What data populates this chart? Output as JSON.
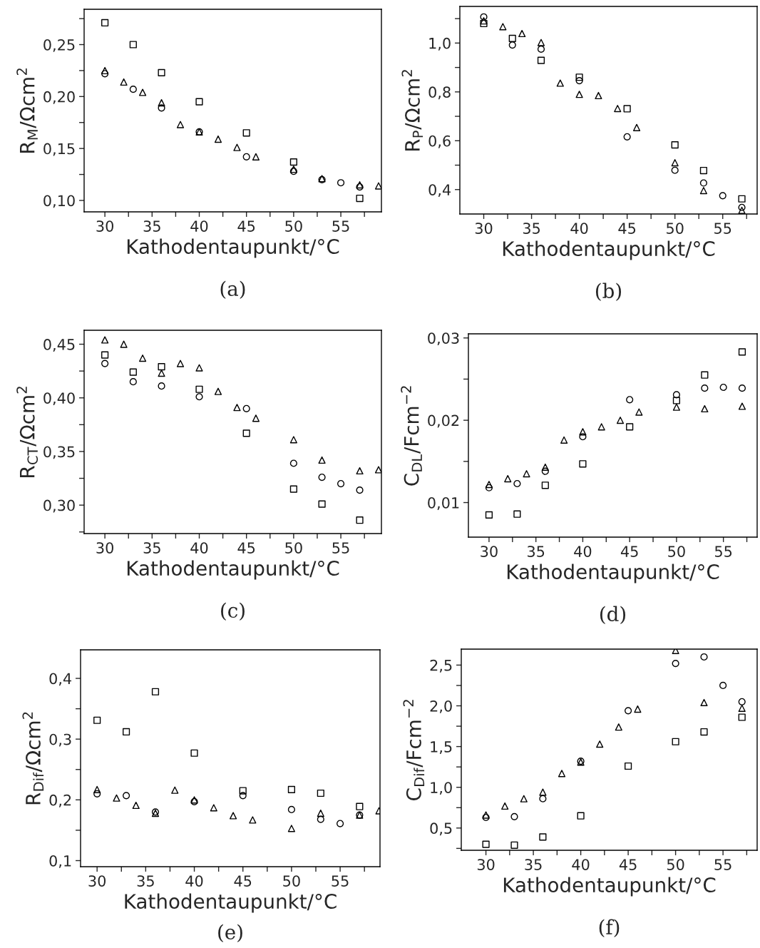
{
  "chart_data": [
    {
      "type": "scatter",
      "xlabel": "Kathodentaupunkt/°C",
      "ylabel": "R$_{M}$/Ωcm$^{2}$",
      "annotations": [
        "(a)"
      ],
      "xlim": [
        27.8,
        59.3
      ],
      "ylim": [
        0.089,
        0.284
      ],
      "xticks": [
        30,
        {
          "value": 32.5,
          "label": null
        },
        35,
        {
          "value": 37.5,
          "label": null
        },
        40,
        {
          "value": 42.5,
          "label": null
        },
        45,
        {
          "value": 47.5,
          "label": null
        },
        50,
        {
          "value": 52.5,
          "label": null
        },
        55,
        {
          "value": 57.5,
          "label": null
        }
      ],
      "yticks": [
        {
          "value": 0.1,
          "label": "0,10"
        },
        {
          "value": 0.125,
          "label": null
        },
        {
          "value": 0.15,
          "label": "0,15"
        },
        {
          "value": 0.175,
          "label": null
        },
        {
          "value": 0.2,
          "label": "0,20"
        },
        {
          "value": 0.225,
          "label": null
        },
        {
          "value": 0.25,
          "label": "0,25"
        },
        {
          "value": 0.275,
          "label": null
        }
      ],
      "series": [
        {
          "color": "#000000",
          "marker": "square",
          "x": [
            30,
            33,
            36,
            40,
            45,
            50,
            57
          ],
          "values": [
            0.271,
            0.25,
            0.223,
            0.195,
            0.165,
            0.137,
            0.102
          ]
        },
        {
          "color": "#000000",
          "marker": "circle",
          "x": [
            30,
            33,
            36,
            40,
            45,
            50,
            53,
            55,
            57
          ],
          "values": [
            0.222,
            0.207,
            0.189,
            0.166,
            0.142,
            0.128,
            0.12,
            0.117,
            0.113
          ]
        },
        {
          "color": "#000000",
          "marker": "triangle",
          "x": [
            30,
            32,
            34,
            36,
            38,
            40,
            42,
            44,
            46,
            50,
            53,
            57,
            59
          ],
          "values": [
            0.225,
            0.214,
            0.204,
            0.194,
            0.173,
            0.166,
            0.159,
            0.151,
            0.142,
            0.13,
            0.121,
            0.115,
            0.114
          ]
        }
      ]
    },
    {
      "type": "scatter",
      "xlabel": "Kathodentaupunkt/°C",
      "ylabel": "R$_{P}$/Ωcm$^{2}$",
      "annotations": [
        "(b)"
      ],
      "xlim": [
        27.5,
        58.6
      ],
      "ylim": [
        0.3,
        1.15
      ],
      "xticks": [
        30,
        {
          "value": 32.5,
          "label": null
        },
        35,
        {
          "value": 37.5,
          "label": null
        },
        40,
        {
          "value": 42.5,
          "label": null
        },
        45,
        {
          "value": 47.5,
          "label": null
        },
        50,
        {
          "value": 52.5,
          "label": null
        },
        55,
        {
          "value": 57.5,
          "label": null
        }
      ],
      "yticks": [
        {
          "value": 0.4,
          "label": "0,4"
        },
        {
          "value": 0.5,
          "label": null
        },
        {
          "value": 0.6,
          "label": "0,6"
        },
        {
          "value": 0.7,
          "label": null
        },
        {
          "value": 0.8,
          "label": "0,8"
        },
        {
          "value": 0.9,
          "label": null
        },
        {
          "value": 1.0,
          "label": "1,0"
        },
        {
          "value": 1.1,
          "label": null
        }
      ],
      "series": [
        {
          "color": "#000000",
          "marker": "square",
          "x": [
            30,
            33,
            36,
            40,
            45,
            50,
            53,
            57
          ],
          "values": [
            1.08,
            1.019,
            0.929,
            0.86,
            0.731,
            0.583,
            0.478,
            0.362
          ]
        },
        {
          "color": "#000000",
          "marker": "circle",
          "x": [
            30,
            33,
            36,
            40,
            45,
            50,
            53,
            55,
            57
          ],
          "values": [
            1.107,
            0.992,
            0.975,
            0.846,
            0.616,
            0.479,
            0.427,
            0.375,
            0.327
          ]
        },
        {
          "color": "#000000",
          "marker": "triangle",
          "x": [
            30,
            32,
            34,
            36,
            38,
            40,
            42,
            44,
            46,
            50,
            53,
            57
          ],
          "values": [
            1.091,
            1.067,
            1.039,
            1.002,
            0.836,
            0.79,
            0.785,
            0.732,
            0.654,
            0.51,
            0.396,
            0.315
          ]
        }
      ]
    },
    {
      "type": "scatter",
      "xlabel": "Kathodentaupunkt/°C",
      "ylabel": "R$_{CT}$/Ωcm$^{2}$",
      "annotations": [
        "(c)"
      ],
      "xlim": [
        27.8,
        59.3
      ],
      "ylim": [
        0.2735,
        0.463
      ],
      "xticks": [
        30,
        {
          "value": 32.5,
          "label": null
        },
        35,
        {
          "value": 37.5,
          "label": null
        },
        40,
        {
          "value": 42.5,
          "label": null
        },
        45,
        {
          "value": 47.5,
          "label": null
        },
        50,
        {
          "value": 52.5,
          "label": null
        },
        55,
        {
          "value": 57.5,
          "label": null
        }
      ],
      "yticks": [
        {
          "value": 0.275,
          "label": null
        },
        {
          "value": 0.3,
          "label": "0,30"
        },
        {
          "value": 0.325,
          "label": null
        },
        {
          "value": 0.35,
          "label": "0,35"
        },
        {
          "value": 0.375,
          "label": null
        },
        {
          "value": 0.4,
          "label": "0,40"
        },
        {
          "value": 0.425,
          "label": null
        },
        {
          "value": 0.45,
          "label": "0,45"
        }
      ],
      "series": [
        {
          "color": "#000000",
          "marker": "square",
          "x": [
            30,
            33,
            36,
            40,
            45,
            50,
            53,
            57
          ],
          "values": [
            0.44,
            0.424,
            0.429,
            0.408,
            0.367,
            0.315,
            0.301,
            0.286
          ]
        },
        {
          "color": "#000000",
          "marker": "circle",
          "x": [
            30,
            33,
            36,
            40,
            45,
            50,
            53,
            55,
            57
          ],
          "values": [
            0.432,
            0.415,
            0.411,
            0.401,
            0.39,
            0.339,
            0.326,
            0.32,
            0.314
          ]
        },
        {
          "color": "#000000",
          "marker": "triangle",
          "x": [
            30,
            32,
            34,
            36,
            38,
            40,
            42,
            44,
            46,
            50,
            53,
            57,
            59
          ],
          "values": [
            0.454,
            0.45,
            0.437,
            0.423,
            0.432,
            0.428,
            0.406,
            0.391,
            0.381,
            0.361,
            0.342,
            0.332,
            0.333
          ]
        }
      ]
    },
    {
      "type": "scatter",
      "xlabel": "Kathodentaupunkt/°C",
      "ylabel": "C$_{DL}$/Fcm$^{−2}$",
      "annotations": [
        "(d)"
      ],
      "xlim": [
        27.8,
        58.6
      ],
      "ylim": [
        0.0058,
        0.0305
      ],
      "xticks": [
        30,
        {
          "value": 32.5,
          "label": null
        },
        35,
        {
          "value": 37.5,
          "label": null
        },
        40,
        {
          "value": 42.5,
          "label": null
        },
        45,
        {
          "value": 47.5,
          "label": null
        },
        50,
        {
          "value": 52.5,
          "label": null
        },
        55,
        {
          "value": 57.5,
          "label": null
        }
      ],
      "yticks": [
        {
          "value": 0.01,
          "label": "0,01"
        },
        {
          "value": 0.015,
          "label": null
        },
        {
          "value": 0.02,
          "label": "0,02"
        },
        {
          "value": 0.025,
          "label": null
        },
        {
          "value": 0.03,
          "label": "0,03"
        }
      ],
      "series": [
        {
          "color": "#000000",
          "marker": "square",
          "x": [
            30,
            33,
            36,
            40,
            45,
            50,
            53,
            57
          ],
          "values": [
            0.0085,
            0.0086,
            0.0121,
            0.0147,
            0.0192,
            0.0224,
            0.0255,
            0.0283
          ]
        },
        {
          "color": "#000000",
          "marker": "circle",
          "x": [
            30,
            33,
            36,
            40,
            45,
            50,
            53,
            55,
            57
          ],
          "values": [
            0.0118,
            0.0123,
            0.0138,
            0.018,
            0.0225,
            0.0231,
            0.0239,
            0.024,
            0.0239
          ]
        },
        {
          "color": "#000000",
          "marker": "triangle",
          "x": [
            30,
            32,
            34,
            36,
            38,
            40,
            42,
            44,
            46,
            50,
            53,
            57
          ],
          "values": [
            0.0122,
            0.0129,
            0.0135,
            0.0143,
            0.0176,
            0.0186,
            0.0192,
            0.02,
            0.021,
            0.0216,
            0.0214,
            0.0217
          ]
        }
      ]
    },
    {
      "type": "scatter",
      "xlabel": "Kathodentaupunkt/°C",
      "ylabel": "R$_{Dif}$/Ωcm$^{2}$",
      "annotations": [
        "(e)"
      ],
      "xlim": [
        28.3,
        59.1
      ],
      "ylim": [
        0.09,
        0.447
      ],
      "xticks": [
        30,
        {
          "value": 32.5,
          "label": null
        },
        35,
        {
          "value": 37.5,
          "label": null
        },
        40,
        {
          "value": 42.5,
          "label": null
        },
        45,
        {
          "value": 47.5,
          "label": null
        },
        50,
        {
          "value": 52.5,
          "label": null
        },
        55,
        {
          "value": 57.5,
          "label": null
        }
      ],
      "yticks": [
        {
          "value": 0.1,
          "label": "0,1"
        },
        {
          "value": 0.15,
          "label": null
        },
        {
          "value": 0.2,
          "label": "0,2"
        },
        {
          "value": 0.25,
          "label": null
        },
        {
          "value": 0.3,
          "label": "0,3"
        },
        {
          "value": 0.35,
          "label": null
        },
        {
          "value": 0.4,
          "label": "0,4"
        }
      ],
      "series": [
        {
          "color": "#000000",
          "marker": "square",
          "x": [
            30,
            33,
            36,
            40,
            45,
            50,
            53,
            57
          ],
          "values": [
            0.331,
            0.312,
            0.378,
            0.277,
            0.215,
            0.217,
            0.211,
            0.189
          ]
        },
        {
          "color": "#000000",
          "marker": "circle",
          "x": [
            30,
            33,
            36,
            40,
            45,
            50,
            53,
            55,
            57
          ],
          "values": [
            0.21,
            0.207,
            0.18,
            0.197,
            0.207,
            0.184,
            0.168,
            0.161,
            0.175
          ]
        },
        {
          "color": "#000000",
          "marker": "triangle",
          "x": [
            30,
            32,
            34,
            36,
            38,
            40,
            42,
            44,
            46,
            50,
            53,
            57,
            59
          ],
          "values": [
            0.217,
            0.203,
            0.191,
            0.178,
            0.216,
            0.2,
            0.187,
            0.174,
            0.167,
            0.153,
            0.178,
            0.175,
            0.182
          ]
        }
      ]
    },
    {
      "type": "scatter",
      "xlabel": "Kathodentaupunkt/°C",
      "ylabel": "C$_{Dif}$/Fcm$^{−2}$",
      "annotations": [
        "(f)"
      ],
      "xlim": [
        27.4,
        58.6
      ],
      "ylim": [
        0.227,
        2.696
      ],
      "xticks": [
        30,
        {
          "value": 32.5,
          "label": null
        },
        35,
        {
          "value": 37.5,
          "label": null
        },
        40,
        {
          "value": 42.5,
          "label": null
        },
        45,
        {
          "value": 47.5,
          "label": null
        },
        50,
        {
          "value": 52.5,
          "label": null
        },
        55,
        {
          "value": 57.5,
          "label": null
        }
      ],
      "yticks": [
        {
          "value": 0.25,
          "label": null
        },
        {
          "value": 0.5,
          "label": "0,5"
        },
        {
          "value": 0.75,
          "label": null
        },
        {
          "value": 1.0,
          "label": "1,0"
        },
        {
          "value": 1.25,
          "label": null
        },
        {
          "value": 1.5,
          "label": "1,5"
        },
        {
          "value": 1.75,
          "label": null
        },
        {
          "value": 2.0,
          "label": "2,0"
        },
        {
          "value": 2.25,
          "label": null
        },
        {
          "value": 2.5,
          "label": "2,5"
        }
      ],
      "series": [
        {
          "color": "#000000",
          "marker": "square",
          "x": [
            30,
            33,
            36,
            40,
            45,
            50,
            53,
            57
          ],
          "values": [
            0.3,
            0.29,
            0.39,
            0.65,
            1.26,
            1.56,
            1.68,
            1.86
          ]
        },
        {
          "color": "#000000",
          "marker": "circle",
          "x": [
            30,
            33,
            36,
            40,
            45,
            50,
            53,
            55,
            57
          ],
          "values": [
            0.63,
            0.64,
            0.86,
            1.32,
            1.94,
            2.52,
            2.6,
            2.25,
            2.05
          ]
        },
        {
          "color": "#000000",
          "marker": "triangle",
          "x": [
            30,
            32,
            34,
            36,
            38,
            40,
            42,
            44,
            46,
            50,
            53,
            57
          ],
          "values": [
            0.66,
            0.77,
            0.86,
            0.94,
            1.17,
            1.31,
            1.53,
            1.74,
            1.96,
            2.68,
            2.04,
            1.97
          ]
        }
      ]
    }
  ]
}
